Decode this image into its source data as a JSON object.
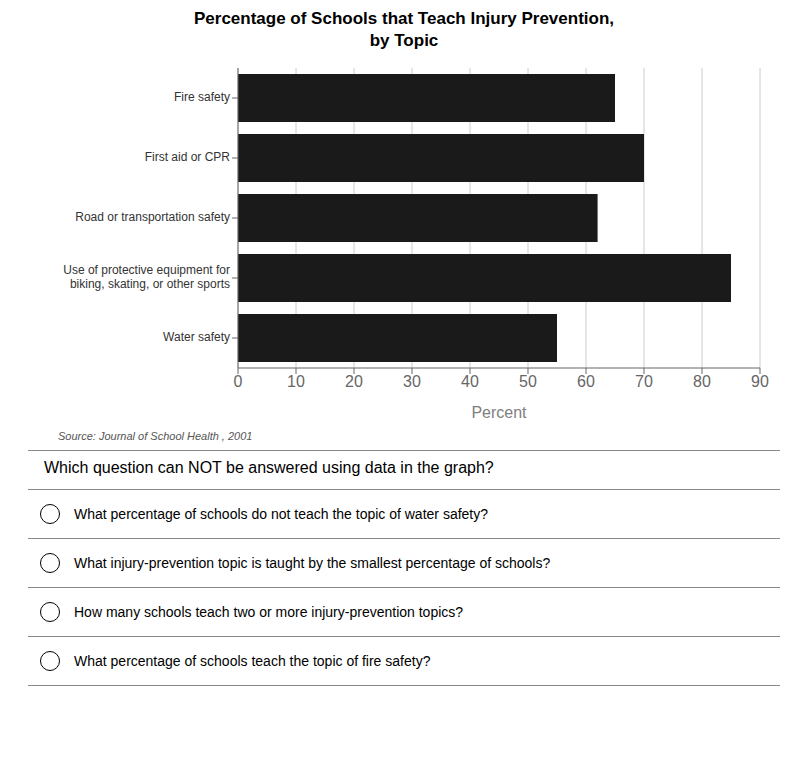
{
  "chart_data": {
    "type": "bar",
    "title": "Percentage of Schools that Teach Injury Prevention,\nby Topic",
    "categories": [
      "Fire safety",
      "First aid or CPR",
      "Road or transportation safety",
      "Use of protective equipment for\nbiking, skating, or other sports",
      "Water safety"
    ],
    "values": [
      65,
      70,
      62,
      85,
      55
    ],
    "color": "#1a1a1a",
    "orientation": "horizontal",
    "xlabel": "Percent",
    "xlim": [
      0,
      90
    ],
    "xticks": [
      0,
      10,
      20,
      30,
      40,
      50,
      60,
      70,
      80,
      90
    ],
    "grid": true,
    "source": "Source: Journal of School Health , 2001",
    "question": "Which question can NOT be answered using data in the graph?",
    "options": [
      "What percentage of schools do not teach the topic of water safety?",
      "What injury-prevention topic is taught by the smallest percentage of schools?",
      "How many schools teach two or more injury-prevention topics?",
      "What percentage of schools teach the topic of fire safety?"
    ]
  }
}
